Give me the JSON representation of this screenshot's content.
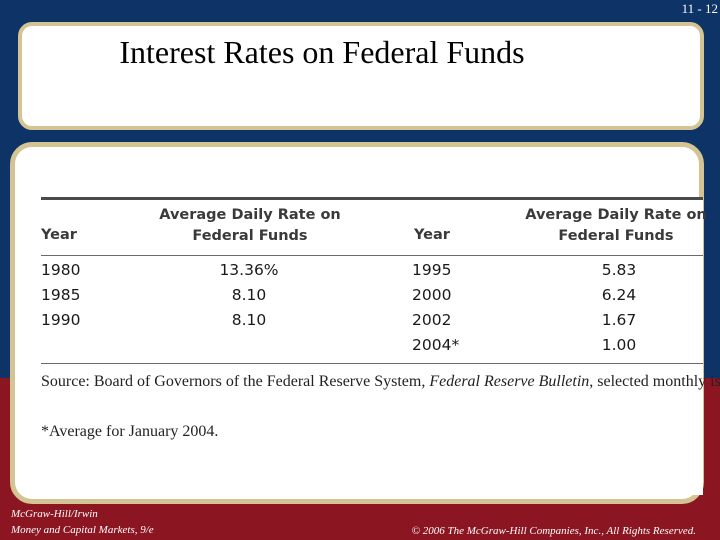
{
  "slide_number": "11 - 12",
  "title": "Interest Rates on Federal Funds",
  "table": {
    "col_year": "Year",
    "col_rate": "Average Daily Rate on Federal Funds",
    "left_rows": [
      {
        "year": "1980",
        "rate": "13.36%"
      },
      {
        "year": "1985",
        "rate": "8.10"
      },
      {
        "year": "1990",
        "rate": "8.10"
      }
    ],
    "right_rows": [
      {
        "year": "1995",
        "rate": "5.83"
      },
      {
        "year": "2000",
        "rate": "6.24"
      },
      {
        "year": "2002",
        "rate": "1.67"
      },
      {
        "year": "2004*",
        "rate": "1.00"
      }
    ]
  },
  "source": {
    "prefix": "Source: Board of Governors of the Federal Reserve System, ",
    "publication": "Federal Reserve Bulletin",
    "suffix": ", selected monthly issues.",
    "footnote": "*Average for January 2004."
  },
  "footer": {
    "publisher": "McGraw-Hill/Irwin",
    "book": "Money and Capital Markets, 9/e",
    "copyright": "© 2006 The McGraw-Hill Companies, Inc., All Rights Reserved."
  },
  "colors": {
    "background_top": "#0d3367",
    "background_bottom": "#8c1522",
    "box_border": "#d4c493"
  }
}
